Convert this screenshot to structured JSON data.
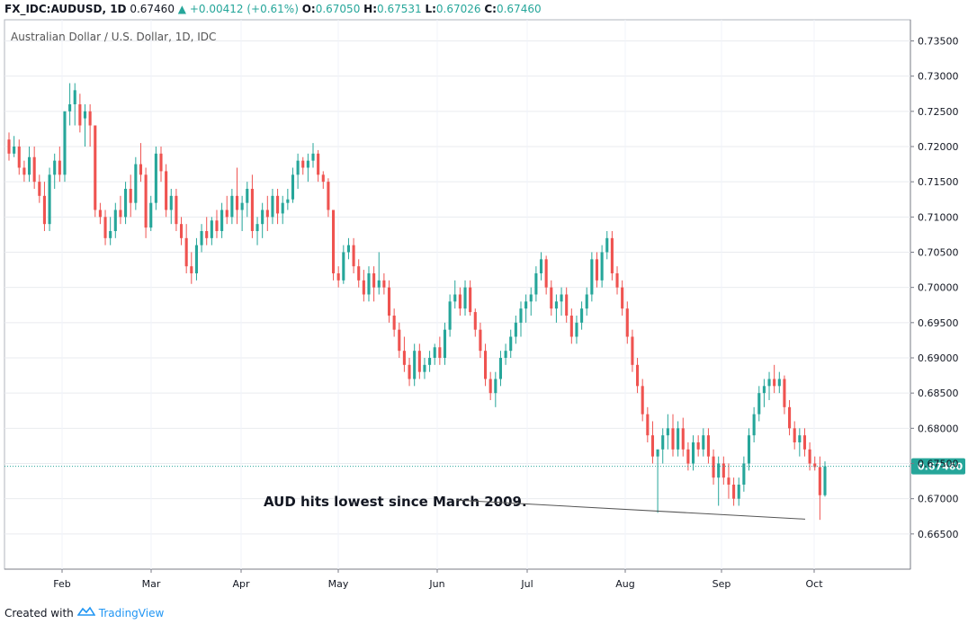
{
  "header": {
    "symbol": "FX_IDC:AUDUSD, 1D",
    "last": "0.67460",
    "change": "+0.00412 (+0.61%)",
    "o_label": "O:",
    "o_value": "0.67050",
    "h_label": "H:",
    "h_value": "0.67531",
    "l_label": "L:",
    "l_value": "0.67026",
    "c_label": "C:",
    "c_value": "0.67460"
  },
  "subtitle": "Australian Dollar / U.S. Dollar, 1D, IDC",
  "footer": {
    "created_with": "Created with",
    "brand": "TradingView"
  },
  "colors": {
    "up": "#26a69a",
    "down": "#ef5350",
    "price_tag": "#26a69a"
  },
  "chart_data": {
    "type": "candlestick",
    "y_ticks": [
      "0.73500",
      "0.73000",
      "0.72500",
      "0.72000",
      "0.71500",
      "0.71000",
      "0.70500",
      "0.70000",
      "0.69500",
      "0.69000",
      "0.68500",
      "0.68000",
      "0.67500",
      "0.67000",
      "0.66500"
    ],
    "ylim": [
      0.66,
      0.738
    ],
    "x_ticks": [
      "Feb",
      "Mar",
      "Apr",
      "May",
      "Jun",
      "Jul",
      "Aug",
      "Sep",
      "Oct"
    ],
    "last_price": 0.6746,
    "last_price_label": "0.67460",
    "annotation": "AUD hits lowest since March 2009.",
    "trendline": [
      0.6676,
      0.6671
    ],
    "candles": [
      [
        0.721,
        0.722,
        0.718,
        0.719
      ],
      [
        0.719,
        0.7215,
        0.7185,
        0.72
      ],
      [
        0.72,
        0.721,
        0.716,
        0.717
      ],
      [
        0.717,
        0.718,
        0.715,
        0.716
      ],
      [
        0.716,
        0.72,
        0.715,
        0.7185
      ],
      [
        0.7185,
        0.72,
        0.714,
        0.715
      ],
      [
        0.715,
        0.716,
        0.712,
        0.713
      ],
      [
        0.713,
        0.715,
        0.708,
        0.709
      ],
      [
        0.709,
        0.717,
        0.708,
        0.716
      ],
      [
        0.716,
        0.719,
        0.714,
        0.718
      ],
      [
        0.718,
        0.72,
        0.715,
        0.716
      ],
      [
        0.716,
        0.725,
        0.715,
        0.725
      ],
      [
        0.725,
        0.729,
        0.723,
        0.726
      ],
      [
        0.726,
        0.729,
        0.723,
        0.728
      ],
      [
        0.726,
        0.7275,
        0.722,
        0.723
      ],
      [
        0.724,
        0.726,
        0.72,
        0.725
      ],
      [
        0.725,
        0.726,
        0.72,
        0.723
      ],
      [
        0.723,
        0.723,
        0.71,
        0.711
      ],
      [
        0.711,
        0.712,
        0.709,
        0.71
      ],
      [
        0.71,
        0.711,
        0.706,
        0.707
      ],
      [
        0.707,
        0.71,
        0.706,
        0.708
      ],
      [
        0.708,
        0.712,
        0.707,
        0.711
      ],
      [
        0.711,
        0.713,
        0.709,
        0.71
      ],
      [
        0.71,
        0.715,
        0.709,
        0.714
      ],
      [
        0.714,
        0.716,
        0.71,
        0.712
      ],
      [
        0.712,
        0.7185,
        0.711,
        0.7175
      ],
      [
        0.7175,
        0.7205,
        0.715,
        0.716
      ],
      [
        0.716,
        0.717,
        0.707,
        0.7085
      ],
      [
        0.7085,
        0.713,
        0.708,
        0.712
      ],
      [
        0.712,
        0.72,
        0.711,
        0.719
      ],
      [
        0.719,
        0.72,
        0.715,
        0.7165
      ],
      [
        0.7165,
        0.7175,
        0.71,
        0.711
      ],
      [
        0.711,
        0.714,
        0.709,
        0.713
      ],
      [
        0.713,
        0.714,
        0.708,
        0.709
      ],
      [
        0.709,
        0.71,
        0.706,
        0.707
      ],
      [
        0.707,
        0.709,
        0.702,
        0.703
      ],
      [
        0.703,
        0.705,
        0.7005,
        0.702
      ],
      [
        0.702,
        0.707,
        0.701,
        0.706
      ],
      [
        0.706,
        0.709,
        0.705,
        0.708
      ],
      [
        0.708,
        0.71,
        0.706,
        0.707
      ],
      [
        0.707,
        0.71,
        0.706,
        0.7095
      ],
      [
        0.7095,
        0.711,
        0.707,
        0.708
      ],
      [
        0.708,
        0.712,
        0.707,
        0.711
      ],
      [
        0.711,
        0.713,
        0.709,
        0.71
      ],
      [
        0.71,
        0.714,
        0.709,
        0.713
      ],
      [
        0.713,
        0.717,
        0.709,
        0.711
      ],
      [
        0.711,
        0.713,
        0.708,
        0.712
      ],
      [
        0.712,
        0.715,
        0.71,
        0.714
      ],
      [
        0.714,
        0.716,
        0.707,
        0.708
      ],
      [
        0.708,
        0.71,
        0.706,
        0.709
      ],
      [
        0.709,
        0.712,
        0.707,
        0.711
      ],
      [
        0.711,
        0.713,
        0.708,
        0.71
      ],
      [
        0.71,
        0.714,
        0.709,
        0.713
      ],
      [
        0.713,
        0.714,
        0.709,
        0.7105
      ],
      [
        0.7105,
        0.713,
        0.709,
        0.712
      ],
      [
        0.712,
        0.714,
        0.711,
        0.7125
      ],
      [
        0.7125,
        0.717,
        0.712,
        0.716
      ],
      [
        0.716,
        0.719,
        0.714,
        0.718
      ],
      [
        0.718,
        0.7185,
        0.716,
        0.717
      ],
      [
        0.717,
        0.719,
        0.715,
        0.718
      ],
      [
        0.718,
        0.7205,
        0.717,
        0.719
      ],
      [
        0.719,
        0.7195,
        0.715,
        0.716
      ],
      [
        0.716,
        0.7165,
        0.714,
        0.715
      ],
      [
        0.715,
        0.7155,
        0.71,
        0.711
      ],
      [
        0.711,
        0.711,
        0.701,
        0.702
      ],
      [
        0.702,
        0.703,
        0.7,
        0.701
      ],
      [
        0.701,
        0.706,
        0.7005,
        0.705
      ],
      [
        0.705,
        0.707,
        0.704,
        0.706
      ],
      [
        0.706,
        0.707,
        0.702,
        0.703
      ],
      [
        0.703,
        0.704,
        0.7,
        0.701
      ],
      [
        0.701,
        0.7025,
        0.698,
        0.699
      ],
      [
        0.699,
        0.703,
        0.698,
        0.702
      ],
      [
        0.702,
        0.703,
        0.698,
        0.7
      ],
      [
        0.7,
        0.705,
        0.699,
        0.701
      ],
      [
        0.701,
        0.702,
        0.699,
        0.7
      ],
      [
        0.7,
        0.701,
        0.695,
        0.696
      ],
      [
        0.696,
        0.697,
        0.693,
        0.694
      ],
      [
        0.694,
        0.695,
        0.69,
        0.691
      ],
      [
        0.691,
        0.693,
        0.688,
        0.689
      ],
      [
        0.689,
        0.69,
        0.686,
        0.687
      ],
      [
        0.687,
        0.692,
        0.686,
        0.691
      ],
      [
        0.691,
        0.692,
        0.687,
        0.688
      ],
      [
        0.688,
        0.69,
        0.687,
        0.689
      ],
      [
        0.689,
        0.691,
        0.688,
        0.69
      ],
      [
        0.69,
        0.692,
        0.689,
        0.6915
      ],
      [
        0.6915,
        0.693,
        0.689,
        0.69
      ],
      [
        0.69,
        0.695,
        0.689,
        0.694
      ],
      [
        0.694,
        0.699,
        0.693,
        0.698
      ],
      [
        0.698,
        0.701,
        0.697,
        0.699
      ],
      [
        0.699,
        0.7,
        0.696,
        0.697
      ],
      [
        0.697,
        0.701,
        0.696,
        0.7
      ],
      [
        0.7,
        0.701,
        0.696,
        0.6965
      ],
      [
        0.6965,
        0.697,
        0.693,
        0.694
      ],
      [
        0.694,
        0.695,
        0.69,
        0.691
      ],
      [
        0.691,
        0.692,
        0.686,
        0.687
      ],
      [
        0.687,
        0.688,
        0.684,
        0.685
      ],
      [
        0.685,
        0.688,
        0.683,
        0.687
      ],
      [
        0.687,
        0.691,
        0.686,
        0.69
      ],
      [
        0.69,
        0.692,
        0.689,
        0.691
      ],
      [
        0.691,
        0.694,
        0.69,
        0.693
      ],
      [
        0.693,
        0.696,
        0.692,
        0.695
      ],
      [
        0.695,
        0.698,
        0.693,
        0.697
      ],
      [
        0.697,
        0.699,
        0.695,
        0.698
      ],
      [
        0.698,
        0.7,
        0.696,
        0.699
      ],
      [
        0.699,
        0.703,
        0.698,
        0.702
      ],
      [
        0.702,
        0.705,
        0.701,
        0.704
      ],
      [
        0.704,
        0.7045,
        0.699,
        0.7
      ],
      [
        0.7,
        0.701,
        0.696,
        0.697
      ],
      [
        0.697,
        0.699,
        0.695,
        0.698
      ],
      [
        0.698,
        0.7,
        0.696,
        0.699
      ],
      [
        0.699,
        0.7,
        0.695,
        0.696
      ],
      [
        0.696,
        0.697,
        0.692,
        0.693
      ],
      [
        0.693,
        0.696,
        0.692,
        0.695
      ],
      [
        0.695,
        0.698,
        0.694,
        0.697
      ],
      [
        0.697,
        0.7,
        0.696,
        0.699
      ],
      [
        0.699,
        0.705,
        0.698,
        0.704
      ],
      [
        0.704,
        0.705,
        0.7,
        0.701
      ],
      [
        0.701,
        0.706,
        0.7,
        0.705
      ],
      [
        0.705,
        0.708,
        0.704,
        0.707
      ],
      [
        0.707,
        0.708,
        0.701,
        0.702
      ],
      [
        0.702,
        0.703,
        0.699,
        0.7
      ],
      [
        0.7,
        0.701,
        0.696,
        0.697
      ],
      [
        0.697,
        0.698,
        0.692,
        0.693
      ],
      [
        0.693,
        0.694,
        0.688,
        0.689
      ],
      [
        0.689,
        0.69,
        0.685,
        0.686
      ],
      [
        0.686,
        0.687,
        0.681,
        0.682
      ],
      [
        0.682,
        0.683,
        0.678,
        0.679
      ],
      [
        0.679,
        0.681,
        0.675,
        0.676
      ],
      [
        0.676,
        0.677,
        0.668,
        0.677
      ],
      [
        0.677,
        0.68,
        0.675,
        0.679
      ],
      [
        0.679,
        0.682,
        0.677,
        0.68
      ],
      [
        0.68,
        0.682,
        0.676,
        0.677
      ],
      [
        0.677,
        0.681,
        0.676,
        0.68
      ],
      [
        0.68,
        0.6815,
        0.676,
        0.677
      ],
      [
        0.677,
        0.678,
        0.674,
        0.675
      ],
      [
        0.675,
        0.679,
        0.674,
        0.678
      ],
      [
        0.678,
        0.679,
        0.676,
        0.677
      ],
      [
        0.677,
        0.68,
        0.676,
        0.679
      ],
      [
        0.679,
        0.68,
        0.675,
        0.676
      ],
      [
        0.676,
        0.677,
        0.672,
        0.673
      ],
      [
        0.673,
        0.676,
        0.669,
        0.675
      ],
      [
        0.675,
        0.676,
        0.672,
        0.673
      ],
      [
        0.673,
        0.675,
        0.67,
        0.672
      ],
      [
        0.672,
        0.673,
        0.669,
        0.67
      ],
      [
        0.67,
        0.673,
        0.669,
        0.672
      ],
      [
        0.672,
        0.676,
        0.671,
        0.675
      ],
      [
        0.675,
        0.68,
        0.674,
        0.679
      ],
      [
        0.679,
        0.683,
        0.678,
        0.682
      ],
      [
        0.682,
        0.686,
        0.681,
        0.685
      ],
      [
        0.685,
        0.687,
        0.683,
        0.686
      ],
      [
        0.686,
        0.688,
        0.684,
        0.687
      ],
      [
        0.687,
        0.689,
        0.685,
        0.686
      ],
      [
        0.686,
        0.688,
        0.685,
        0.687
      ],
      [
        0.687,
        0.6875,
        0.682,
        0.683
      ],
      [
        0.683,
        0.684,
        0.679,
        0.68
      ],
      [
        0.68,
        0.681,
        0.677,
        0.678
      ],
      [
        0.678,
        0.68,
        0.676,
        0.679
      ],
      [
        0.679,
        0.68,
        0.676,
        0.677
      ],
      [
        0.677,
        0.678,
        0.674,
        0.675
      ],
      [
        0.675,
        0.676,
        0.674,
        0.6745
      ],
      [
        0.6745,
        0.676,
        0.667,
        0.6705
      ],
      [
        0.6705,
        0.6753,
        0.6703,
        0.6746
      ]
    ]
  }
}
